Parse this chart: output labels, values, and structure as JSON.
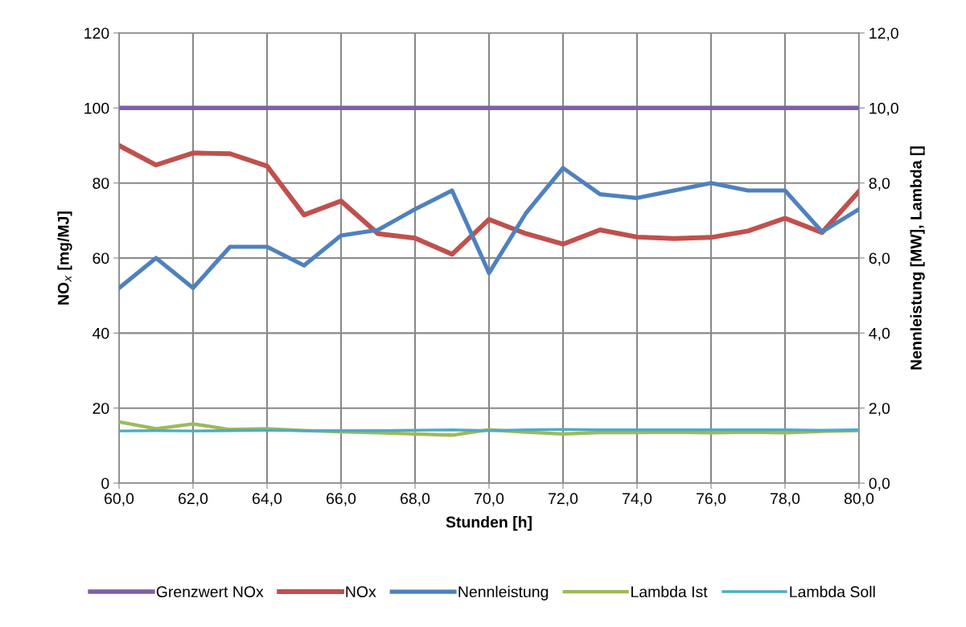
{
  "chart_data": {
    "type": "line",
    "xlabel": "Stunden [h]",
    "ylabel": "NO$_{x}$ [mg/MJ]",
    "y2label": "Nennleistung [MW], Lambda []",
    "x": [
      60,
      61,
      62,
      63,
      64,
      65,
      66,
      67,
      68,
      69,
      70,
      71,
      72,
      73,
      74,
      75,
      76,
      77,
      78,
      79,
      80
    ],
    "series": [
      {
        "name": "Grenzwert NOx",
        "color": "#7f5fa8",
        "values": [
          100,
          100,
          100,
          100,
          100,
          100,
          100,
          100,
          100,
          100,
          100,
          100,
          100,
          100,
          100,
          100,
          100,
          100,
          100,
          100,
          100
        ]
      },
      {
        "name": "NOx",
        "color": "#c0504d",
        "values": [
          90,
          84.8,
          88,
          87.8,
          84.5,
          71.5,
          75.2,
          66.5,
          65.3,
          61,
          70.3,
          66.5,
          63.7,
          67.5,
          65.6,
          65.2,
          65.5,
          67.2,
          70.6,
          66.8,
          77.8
        ]
      },
      {
        "name": "Nennleistung",
        "color": "#4f81bd",
        "axis": "y2",
        "values": [
          5.2,
          6.0,
          5.2,
          6.3,
          6.3,
          5.8,
          6.6,
          6.75,
          7.3,
          7.8,
          5.6,
          7.2,
          8.4,
          7.7,
          7.6,
          7.8,
          8.0,
          7.8,
          7.8,
          6.7,
          7.3
        ]
      },
      {
        "name": "Lambda Ist",
        "color": "#9bbb59",
        "axis": "y2",
        "values": [
          1.63,
          1.45,
          1.58,
          1.43,
          1.45,
          1.4,
          1.37,
          1.34,
          1.31,
          1.28,
          1.42,
          1.36,
          1.31,
          1.35,
          1.35,
          1.36,
          1.34,
          1.36,
          1.34,
          1.38,
          1.4
        ]
      },
      {
        "name": "Lambda Soll",
        "color": "#4bacc6",
        "axis": "y2",
        "values": [
          1.39,
          1.4,
          1.39,
          1.4,
          1.41,
          1.4,
          1.4,
          1.4,
          1.41,
          1.42,
          1.4,
          1.42,
          1.43,
          1.42,
          1.42,
          1.42,
          1.42,
          1.42,
          1.42,
          1.41,
          1.42
        ]
      }
    ],
    "xlim": [
      60,
      80
    ],
    "xticks": [
      {
        "value": 60,
        "label": "60,0"
      },
      {
        "value": 62,
        "label": "62,0"
      },
      {
        "value": 64,
        "label": "64,0"
      },
      {
        "value": 66,
        "label": "66,0"
      },
      {
        "value": 68,
        "label": "68,0"
      },
      {
        "value": 70,
        "label": "70,0"
      },
      {
        "value": 72,
        "label": "72,0"
      },
      {
        "value": 74,
        "label": "74,0"
      },
      {
        "value": 76,
        "label": "76,0"
      },
      {
        "value": 78,
        "label": "78,0"
      },
      {
        "value": 80,
        "label": "80,0"
      }
    ],
    "ylim": [
      0,
      120
    ],
    "yticks": [
      0,
      20,
      40,
      60,
      80,
      100,
      120
    ],
    "y2lim": [
      0,
      12
    ],
    "y2ticks": [
      {
        "value": 0,
        "label": "0,0"
      },
      {
        "value": 2,
        "label": "2,0"
      },
      {
        "value": 4,
        "label": "4,0"
      },
      {
        "value": 6,
        "label": "6,0"
      },
      {
        "value": 8,
        "label": "8,0"
      },
      {
        "value": 10,
        "label": "10,0"
      },
      {
        "value": 12,
        "label": "12,0"
      }
    ],
    "grid": true,
    "legend": "bottom",
    "marker": "none",
    "line_style": "solid"
  }
}
